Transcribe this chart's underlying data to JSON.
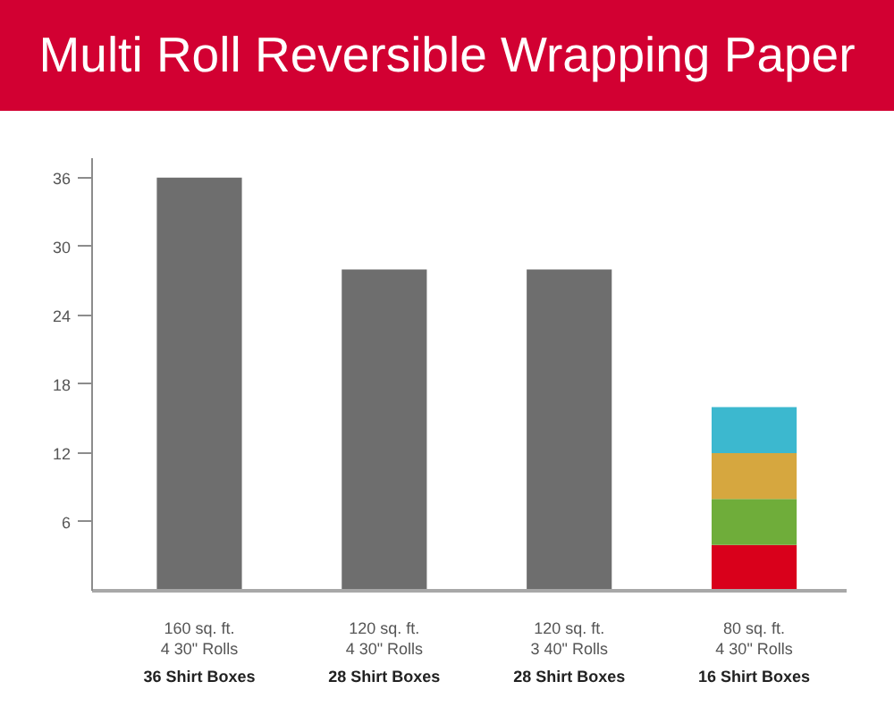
{
  "chart_data": {
    "type": "bar",
    "title": "Multi Roll Reversible Wrapping Paper",
    "categories": [
      "160 sq. ft.\n4 30\" Rolls\n36 Shirt Boxes",
      "120 sq. ft.\n4 30\" Rolls\n28 Shirt Boxes",
      "120 sq. ft.\n3 40\" Rolls\n28 Shirt Boxes",
      "80 sq. ft.\n4 30\" Rolls\n16 Shirt Boxes"
    ],
    "stacked": true,
    "series": [
      {
        "color": "#6e6e6e",
        "values": [
          36,
          28,
          28,
          null
        ]
      },
      {
        "color": "#d9001b",
        "values": [
          null,
          null,
          null,
          4
        ]
      },
      {
        "color": "#6fad3a",
        "values": [
          null,
          null,
          null,
          4
        ]
      },
      {
        "color": "#d6a73f",
        "values": [
          null,
          null,
          null,
          4
        ]
      },
      {
        "color": "#3cb8cf",
        "values": [
          null,
          null,
          null,
          4
        ]
      }
    ],
    "ylim": [
      0,
      37.7
    ],
    "yticks": [
      6,
      12,
      18,
      24,
      30,
      36
    ],
    "grid": false
  }
}
